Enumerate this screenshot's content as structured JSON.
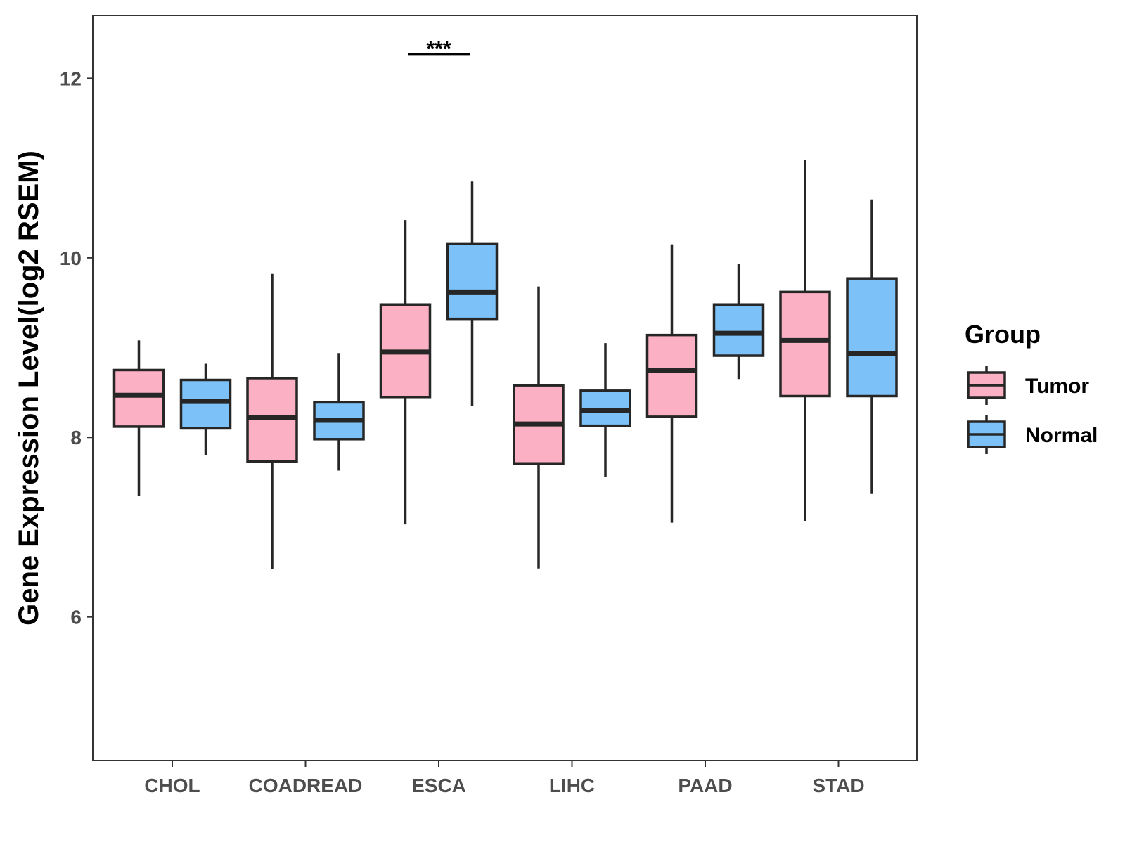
{
  "chart_data": {
    "type": "boxplot",
    "title": "",
    "xlabel": "",
    "ylabel": "Gene Expression Level(log2 RSEM)",
    "ylim": [
      4.4,
      12.7
    ],
    "yticks": [
      6,
      8,
      10,
      12
    ],
    "grid": false,
    "categories": [
      "CHOL",
      "COADREAD",
      "ESCA",
      "LIHC",
      "PAAD",
      "STAD"
    ],
    "legend": {
      "title": "Group",
      "position": "right",
      "entries": [
        {
          "name": "Tumor",
          "color": "#fbb1c3"
        },
        {
          "name": "Normal",
          "color": "#7cc2f8"
        }
      ]
    },
    "series": [
      {
        "name": "Tumor",
        "color": "#fbb1c3",
        "boxes": [
          {
            "category": "CHOL",
            "min": 7.35,
            "q1": 8.12,
            "median": 8.47,
            "q3": 8.75,
            "max": 9.08
          },
          {
            "category": "COADREAD",
            "min": 6.53,
            "q1": 7.73,
            "median": 8.22,
            "q3": 8.66,
            "max": 9.82
          },
          {
            "category": "ESCA",
            "min": 7.03,
            "q1": 8.45,
            "median": 8.95,
            "q3": 9.48,
            "max": 10.42
          },
          {
            "category": "LIHC",
            "min": 6.54,
            "q1": 7.71,
            "median": 8.15,
            "q3": 8.58,
            "max": 9.68
          },
          {
            "category": "PAAD",
            "min": 7.05,
            "q1": 8.23,
            "median": 8.75,
            "q3": 9.14,
            "max": 10.15
          },
          {
            "category": "STAD",
            "min": 7.07,
            "q1": 8.46,
            "median": 9.08,
            "q3": 9.62,
            "max": 11.09
          }
        ]
      },
      {
        "name": "Normal",
        "color": "#7cc2f8",
        "boxes": [
          {
            "category": "CHOL",
            "min": 7.8,
            "q1": 8.1,
            "median": 8.4,
            "q3": 8.64,
            "max": 8.82
          },
          {
            "category": "COADREAD",
            "min": 7.63,
            "q1": 7.98,
            "median": 8.19,
            "q3": 8.39,
            "max": 8.94
          },
          {
            "category": "ESCA",
            "min": 8.35,
            "q1": 9.32,
            "median": 9.62,
            "q3": 10.16,
            "max": 10.85
          },
          {
            "category": "LIHC",
            "min": 7.56,
            "q1": 8.13,
            "median": 8.3,
            "q3": 8.52,
            "max": 9.05
          },
          {
            "category": "PAAD",
            "min": 8.65,
            "q1": 8.91,
            "median": 9.16,
            "q3": 9.48,
            "max": 9.93
          },
          {
            "category": "STAD",
            "min": 7.37,
            "q1": 8.46,
            "median": 8.93,
            "q3": 9.77,
            "max": 10.65
          }
        ]
      }
    ],
    "annotations": [
      {
        "category": "ESCA",
        "text": "***",
        "y": 12.27
      }
    ]
  }
}
